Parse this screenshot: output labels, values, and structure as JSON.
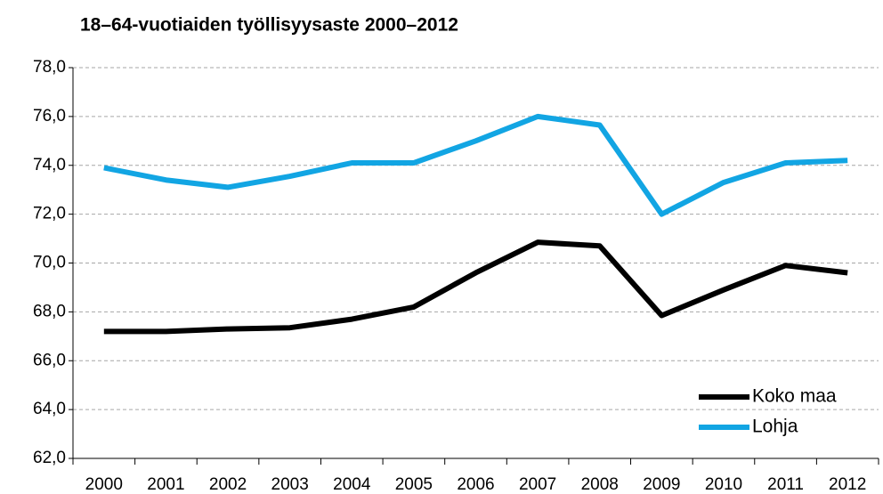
{
  "chart_data": {
    "type": "line",
    "title": "18–64-vuotiaiden työllisyysaste 2000–2012",
    "categories": [
      "2000",
      "2001",
      "2002",
      "2003",
      "2004",
      "2005",
      "2006",
      "2007",
      "2008",
      "2009",
      "2010",
      "2011",
      "2012"
    ],
    "series": [
      {
        "name": "Koko maa",
        "color": "#000000",
        "values": [
          67.2,
          67.2,
          67.3,
          67.35,
          67.7,
          68.2,
          69.6,
          70.85,
          70.7,
          67.85,
          68.9,
          69.9,
          69.6
        ]
      },
      {
        "name": "Lohja",
        "color": "#12a5e3",
        "values": [
          73.9,
          73.4,
          73.1,
          73.55,
          74.1,
          74.1,
          75.0,
          76.0,
          75.65,
          72.0,
          73.3,
          74.1,
          74.2
        ]
      }
    ],
    "ylim": [
      62,
      78
    ],
    "yticks": [
      {
        "value": 62,
        "label": "62,0"
      },
      {
        "value": 64,
        "label": "64,0"
      },
      {
        "value": 66,
        "label": "66,0"
      },
      {
        "value": 68,
        "label": "68,0"
      },
      {
        "value": 70,
        "label": "70,0"
      },
      {
        "value": 72,
        "label": "72,0"
      },
      {
        "value": 74,
        "label": "74,0"
      },
      {
        "value": 76,
        "label": "76,0"
      },
      {
        "value": 78,
        "label": "78,0"
      }
    ],
    "grid": true,
    "legend": "lower right"
  }
}
